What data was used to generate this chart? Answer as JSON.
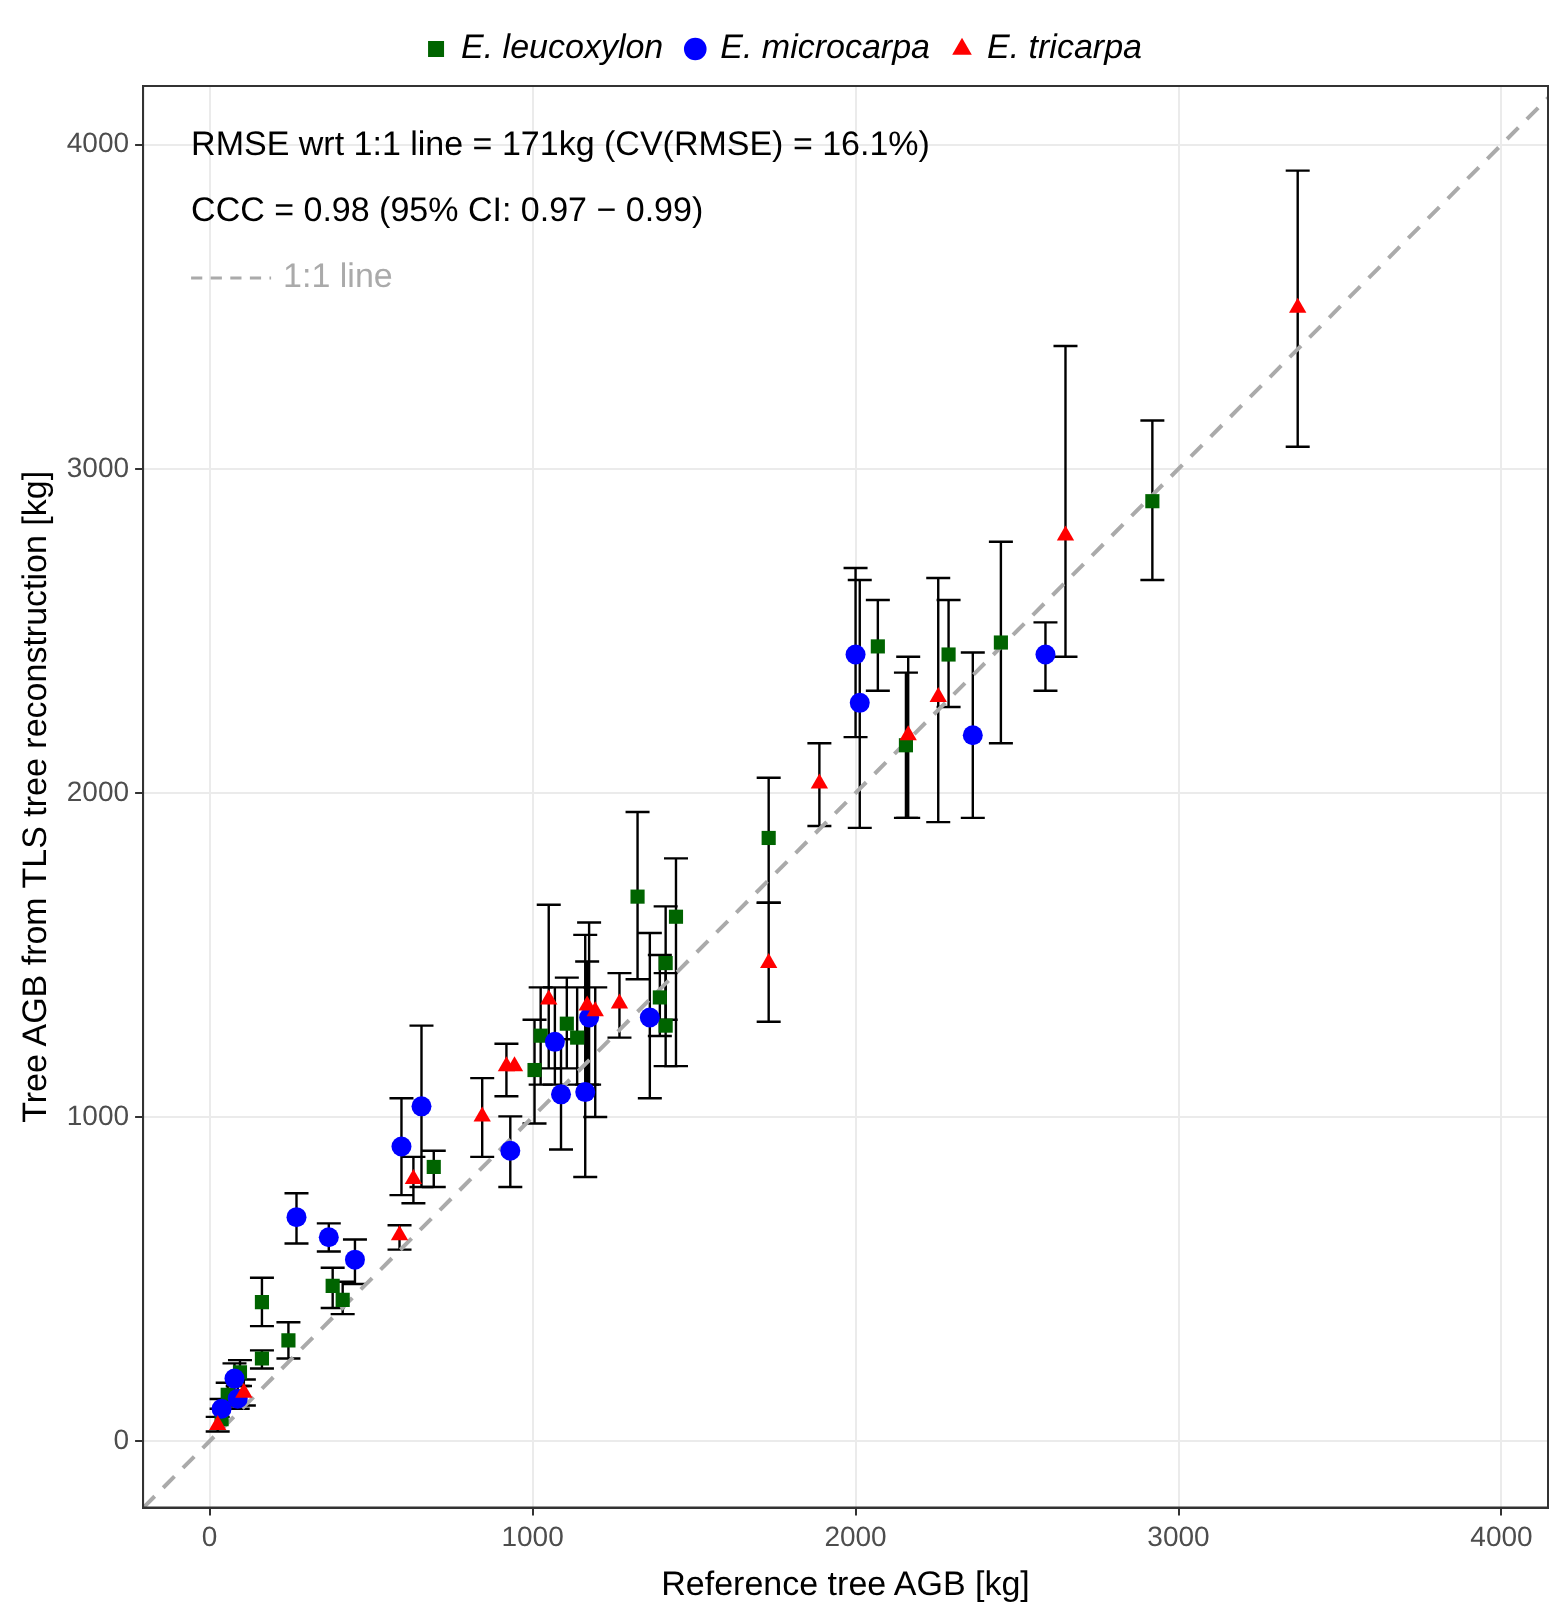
{
  "chart_data": {
    "type": "scatter",
    "xlabel": "Reference tree AGB [kg]",
    "ylabel": "Tree AGB from TLS tree reconstruction [kg]",
    "xlim": [
      -206,
      4144
    ],
    "ylim": [
      -205,
      4181
    ],
    "xticks": [
      0,
      1000,
      2000,
      3000,
      4000
    ],
    "yticks": [
      0,
      1000,
      2000,
      3000,
      4000
    ],
    "grid": true,
    "legend": "top",
    "annotations": [
      "RMSE wrt 1:1 line = 171kg (CV(RMSE) = 16.1%)",
      "CCC = 0.98 (95% CI: 0.97 − 0.99)"
    ],
    "series": [
      {
        "name": "E. leucoxylon",
        "color": "#006400",
        "marker": "square",
        "x": [
          37,
          56,
          94,
          162,
          162,
          244,
          381,
          412,
          694,
          1006,
          1025,
          1106,
          1138,
          1325,
          1394,
          1412,
          1412,
          1444,
          1731,
          2069,
          2156,
          2288,
          2450,
          2919
        ],
        "values": [
          68,
          143,
          212,
          429,
          255,
          311,
          479,
          436,
          846,
          1145,
          1251,
          1288,
          1245,
          1680,
          1369,
          1475,
          1282,
          1618,
          1861,
          2452,
          2147,
          2427,
          2464,
          2900
        ],
        "errors": [
          null,
          [
            110,
            180
          ],
          [
            170,
            250
          ],
          [
            355,
            504
          ],
          [
            224,
            280
          ],
          [
            255,
            367
          ],
          [
            411,
            535
          ],
          [
            392,
            492
          ],
          [
            784,
            896
          ],
          [
            980,
            1300
          ],
          [
            1100,
            1400
          ],
          [
            1150,
            1430
          ],
          [
            1100,
            1400
          ],
          [
            1425,
            1941
          ],
          [
            1250,
            1500
          ],
          [
            1300,
            1650
          ],
          [
            1157,
            1444
          ],
          [
            1157,
            1798
          ],
          [
            1661,
            2047
          ],
          [
            2315,
            2595
          ],
          [
            1923,
            2371
          ],
          [
            2265,
            2595
          ],
          [
            2153,
            2775
          ],
          [
            2657,
            3149
          ]
        ]
      },
      {
        "name": "E. microcarpa",
        "color": "#0000ff",
        "marker": "circle",
        "x": [
          37,
          77,
          87,
          269,
          369,
          450,
          594,
          656,
          931,
          1069,
          1088,
          1163,
          1175,
          1363,
          2000,
          2013,
          2363,
          2588
        ],
        "values": [
          100,
          193,
          131,
          691,
          629,
          560,
          909,
          1033,
          896,
          1232,
          1070,
          1077,
          1307,
          1307,
          2427,
          2278,
          2178,
          2427
        ],
        "errors": [
          [
            100,
            130
          ],
          [
            150,
            240
          ],
          [
            100,
            170
          ],
          [
            610,
            765
          ],
          [
            585,
            672
          ],
          [
            485,
            622
          ],
          [
            759,
            1058
          ],
          [
            784,
            1282
          ],
          [
            784,
            1002
          ],
          [
            1100,
            1400
          ],
          [
            900,
            1240
          ],
          [
            815,
            1562
          ],
          [
            1100,
            1600
          ],
          [
            1058,
            1568
          ],
          [
            2172,
            2694
          ],
          [
            1892,
            2657
          ],
          [
            1923,
            2433
          ],
          [
            2315,
            2526
          ]
        ]
      },
      {
        "name": "E. tricarpa",
        "color": "#ff0000",
        "marker": "triangle",
        "x": [
          25,
          106,
          588,
          631,
          844,
          919,
          944,
          1050,
          1169,
          1194,
          1269,
          1731,
          1888,
          2163,
          2256,
          2650,
          3369
        ],
        "values": [
          50,
          149,
          635,
          809,
          1002,
          1157,
          1157,
          1363,
          1344,
          1326,
          1350,
          1475,
          2029,
          2178,
          2296,
          2794,
          3497
        ],
        "errors": [
          [
            30,
            75
          ],
          [
            110,
            190
          ],
          [
            591,
            666
          ],
          [
            734,
            877
          ],
          [
            877,
            1120
          ],
          [
            1064,
            1226
          ],
          null,
          [
            1150,
            1655
          ],
          [
            1100,
            1480
          ],
          [
            1000,
            1400
          ],
          [
            1245,
            1444
          ],
          [
            1294,
            1661
          ],
          [
            1898,
            2153
          ],
          [
            1923,
            2420
          ],
          [
            1910,
            2663
          ],
          [
            2420,
            3379
          ],
          [
            3068,
            3920
          ]
        ]
      },
      {
        "name": "1:1 line",
        "type": "line",
        "color": "#aaaaaa",
        "line_style": "dashed",
        "marker": "none",
        "x": [
          -205,
          4144
        ],
        "values": [
          -205,
          4144
        ]
      }
    ]
  }
}
